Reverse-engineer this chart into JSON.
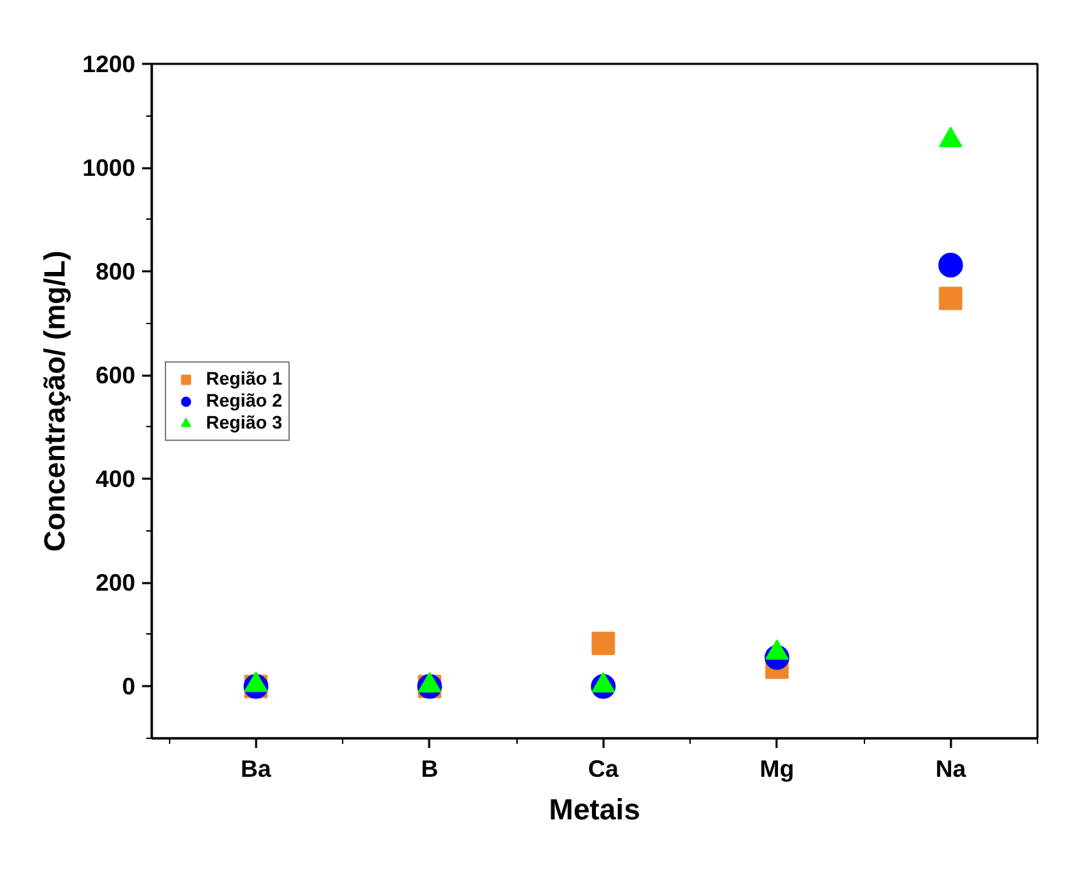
{
  "chart_data": {
    "type": "scatter",
    "xlabel": "Metais",
    "ylabel": "Concentração/ (mg/L)",
    "categories": [
      "Ba",
      "B",
      "Ca",
      "Mg",
      "Na"
    ],
    "series": [
      {
        "name": "Região 1",
        "color": "#f0862c",
        "marker": "square",
        "values": [
          0,
          0,
          83,
          37,
          748
        ]
      },
      {
        "name": "Região 2",
        "color": "#0000ff",
        "marker": "circle",
        "values": [
          0,
          0,
          0,
          56,
          812
        ]
      },
      {
        "name": "Região 3",
        "color": "#00ff00",
        "marker": "triangle",
        "values": [
          3,
          2,
          2,
          65,
          1053
        ]
      }
    ],
    "ylim": [
      -100,
      1200
    ],
    "yticks": [
      0,
      200,
      400,
      600,
      800,
      1000,
      1200
    ],
    "grid": false,
    "legend": "left"
  }
}
